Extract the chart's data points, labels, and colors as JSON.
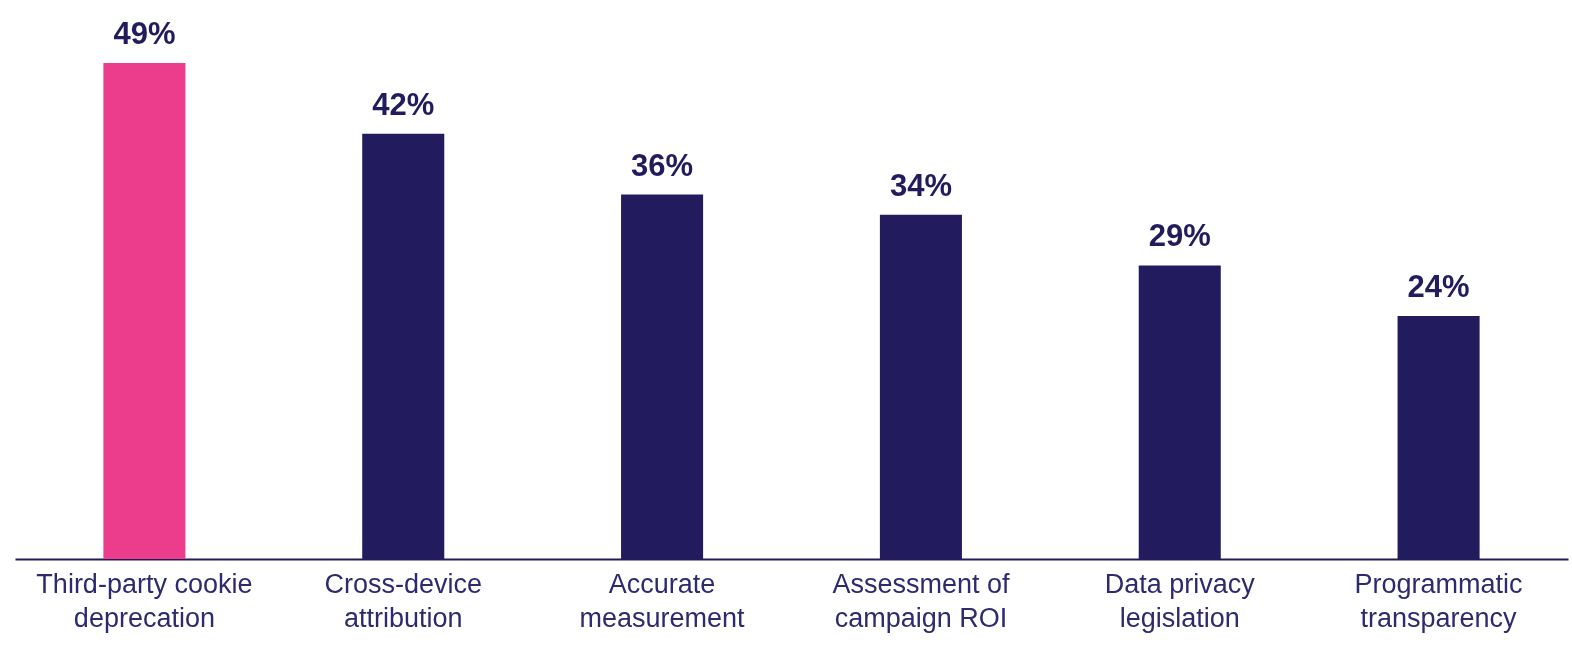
{
  "chart_data": {
    "type": "bar",
    "categories": [
      "Third-party cookie deprecation",
      "Cross-device attribution",
      "Accurate measurement",
      "Assessment of campaign ROI",
      "Data privacy legislation",
      "Programmatic transparency"
    ],
    "values": [
      49,
      42,
      36,
      34,
      29,
      24
    ],
    "colors": [
      "#ec3c8c",
      "#221c5e",
      "#221c5e",
      "#221c5e",
      "#221c5e",
      "#221c5e"
    ],
    "value_labels": [
      "49%",
      "42%",
      "36%",
      "34%",
      "29%",
      "24%"
    ],
    "grid": false
  }
}
